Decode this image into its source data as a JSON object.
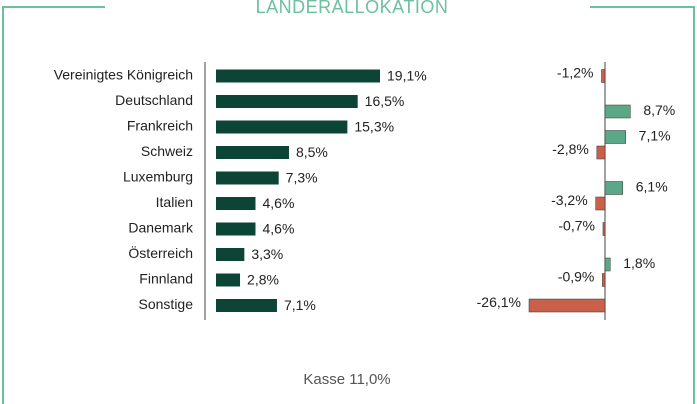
{
  "title": "LÄNDERALLOKATION",
  "footer": "Kasse 11,0%",
  "chart_data": [
    {
      "type": "bar",
      "orientation": "horizontal",
      "color": "#0c4536",
      "categories": [
        "Vereinigtes Königreich",
        "Deutschland",
        "Frankreich",
        "Schweiz",
        "Luxemburg",
        "Italien",
        "Danemark",
        "Österreich",
        "Finnland",
        "Sonstige"
      ],
      "values": [
        19.1,
        16.5,
        15.3,
        8.5,
        7.3,
        4.6,
        4.6,
        3.3,
        2.8,
        7.1
      ],
      "value_labels": [
        "19,1%",
        "16,5%",
        "15,3%",
        "8,5%",
        "7,3%",
        "4,6%",
        "4,6%",
        "3,3%",
        "2,8%",
        "7,1%"
      ]
    },
    {
      "type": "bar",
      "orientation": "horizontal",
      "positive_color": "#5aa888",
      "negative_color": "#c9604a",
      "values": [
        -1.2,
        8.7,
        7.1,
        -2.8,
        6.1,
        -3.2,
        -0.7,
        1.8,
        -0.9,
        -26.1
      ],
      "value_labels": [
        "-1,2%",
        "8,7%",
        "7,1%",
        "-2,8%",
        "6,1%",
        "-3,2%",
        "-0,7%",
        "1,8%",
        "-0,9%",
        "-26,1%"
      ]
    }
  ]
}
